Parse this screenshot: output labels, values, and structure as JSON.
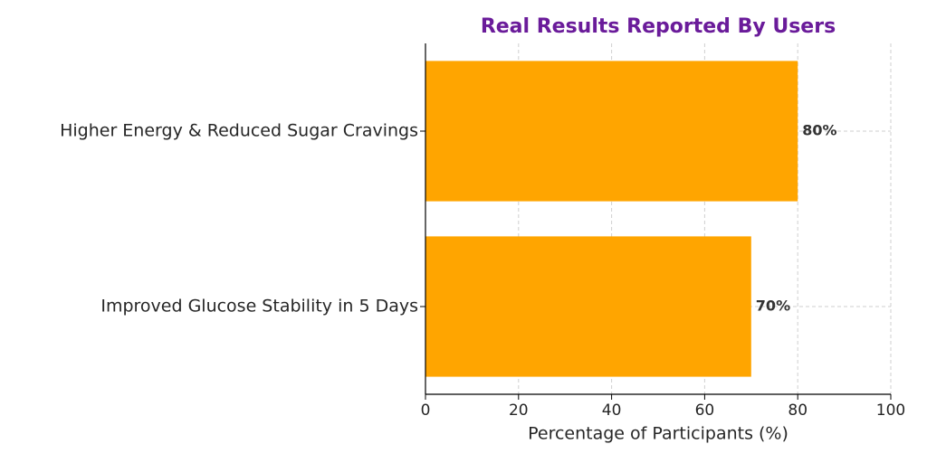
{
  "chart_data": {
    "type": "barh",
    "title": "Real Results Reported By Users",
    "categories": [
      "Higher Energy & Reduced Sugar Cravings",
      "Improved Glucose Stability in 5 Days"
    ],
    "values": [
      80,
      70
    ],
    "value_labels": [
      "80%",
      "70%"
    ],
    "color": "#ffa500",
    "xlabel": "Percentage of Participants (%)",
    "xlim": [
      0,
      100
    ],
    "xticks": [
      0,
      20,
      40,
      60,
      80,
      100
    ],
    "grid": true
  }
}
